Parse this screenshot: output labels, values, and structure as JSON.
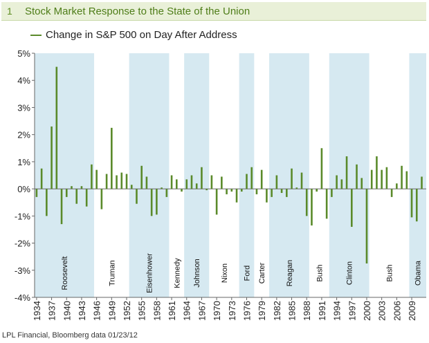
{
  "title": {
    "number": "1",
    "text": "Stock Market Response to the State of the Union"
  },
  "legend_label": "Change in S&P 500 on Day After Address",
  "source": "LPL Financial, Bloomberg data   01/23/12",
  "colors": {
    "bar": "#5a8a2a",
    "band": "#d6e9f1",
    "axis": "#666666",
    "title_bg": "#e9f0d8"
  },
  "chart_data": {
    "type": "bar",
    "ylim": [
      -4,
      5
    ],
    "yticks": [
      5,
      4,
      3,
      2,
      1,
      0,
      -1,
      -2,
      -3,
      -4
    ],
    "ytick_labels": [
      "5%",
      "4%",
      "3%",
      "2%",
      "1%",
      "0%",
      "-1%",
      "-2%",
      "-3%",
      "-4%"
    ],
    "xlim": [
      1933.6,
      2011.9
    ],
    "xticks": [
      1934,
      1937,
      1940,
      1943,
      1946,
      1949,
      1952,
      1955,
      1958,
      1961,
      1964,
      1967,
      1970,
      1973,
      1976,
      1979,
      1982,
      1985,
      1988,
      1991,
      1994,
      1997,
      2000,
      2003,
      2006,
      2009
    ],
    "grid": false,
    "legend_position": "top-left",
    "values_pct": [
      [
        1934,
        -0.3
      ],
      [
        1935,
        0.75
      ],
      [
        1936,
        -1.0
      ],
      [
        1937,
        2.3
      ],
      [
        1938,
        4.5
      ],
      [
        1939,
        -1.3
      ],
      [
        1940,
        -0.3
      ],
      [
        1941,
        0.1
      ],
      [
        1942,
        -0.55
      ],
      [
        1943,
        0.1
      ],
      [
        1944,
        -0.65
      ],
      [
        1945,
        0.9
      ],
      [
        1946,
        0.7
      ],
      [
        1947,
        -0.75
      ],
      [
        1948,
        0.55
      ],
      [
        1949,
        2.25
      ],
      [
        1950,
        0.5
      ],
      [
        1951,
        0.6
      ],
      [
        1952,
        0.55
      ],
      [
        1953,
        0.15
      ],
      [
        1954,
        -0.55
      ],
      [
        1955,
        0.85
      ],
      [
        1956,
        0.45
      ],
      [
        1957,
        -1.0
      ],
      [
        1958,
        -0.95
      ],
      [
        1959,
        0.05
      ],
      [
        1960,
        -0.3
      ],
      [
        1961,
        0.5
      ],
      [
        1962,
        0.35
      ],
      [
        1963,
        -0.1
      ],
      [
        1964,
        0.35
      ],
      [
        1965,
        0.5
      ],
      [
        1966,
        0.2
      ],
      [
        1967,
        0.8
      ],
      [
        1968,
        -0.05
      ],
      [
        1969,
        0.5
      ],
      [
        1970,
        -0.95
      ],
      [
        1971,
        0.45
      ],
      [
        1972,
        -0.2
      ],
      [
        1973,
        -0.1
      ],
      [
        1974,
        -0.5
      ],
      [
        1975,
        -0.1
      ],
      [
        1976,
        0.55
      ],
      [
        1977,
        0.8
      ],
      [
        1978,
        -0.2
      ],
      [
        1979,
        0.7
      ],
      [
        1980,
        -0.5
      ],
      [
        1981,
        -0.3
      ],
      [
        1982,
        0.5
      ],
      [
        1983,
        -0.15
      ],
      [
        1984,
        -0.3
      ],
      [
        1985,
        0.75
      ],
      [
        1986,
        0.05
      ],
      [
        1987,
        0.6
      ],
      [
        1988,
        -1.0
      ],
      [
        1989,
        -1.35
      ],
      [
        1990,
        -0.1
      ],
      [
        1991,
        1.5
      ],
      [
        1992,
        -1.1
      ],
      [
        1993,
        -0.3
      ],
      [
        1994,
        0.5
      ],
      [
        1995,
        0.35
      ],
      [
        1996,
        1.2
      ],
      [
        1997,
        -1.4
      ],
      [
        1998,
        0.9
      ],
      [
        1999,
        0.4
      ],
      [
        2000,
        -2.75
      ],
      [
        2001,
        0.7
      ],
      [
        2002,
        1.2
      ],
      [
        2003,
        0.7
      ],
      [
        2004,
        0.8
      ],
      [
        2005,
        -0.3
      ],
      [
        2006,
        0.2
      ],
      [
        2007,
        0.85
      ],
      [
        2008,
        0.65
      ],
      [
        2009,
        -1.05
      ],
      [
        2010,
        -1.2
      ],
      [
        2011,
        0.45
      ]
    ],
    "administrations": [
      {
        "name": "Roosevelt",
        "start": 1933.6,
        "end": 1945.5,
        "shaded": true
      },
      {
        "name": "Truman",
        "start": 1945.5,
        "end": 1952.5,
        "shaded": false
      },
      {
        "name": "Eisenhower",
        "start": 1952.5,
        "end": 1960.5,
        "shaded": true
      },
      {
        "name": "Kennedy",
        "start": 1960.5,
        "end": 1963.5,
        "shaded": false
      },
      {
        "name": "Johnson",
        "start": 1963.5,
        "end": 1968.5,
        "shaded": true
      },
      {
        "name": "Nixon",
        "start": 1968.5,
        "end": 1974.5,
        "shaded": false
      },
      {
        "name": "Ford",
        "start": 1974.5,
        "end": 1977.5,
        "shaded": true
      },
      {
        "name": "Carter",
        "start": 1977.5,
        "end": 1980.5,
        "shaded": false
      },
      {
        "name": "Reagan",
        "start": 1980.5,
        "end": 1988.5,
        "shaded": true
      },
      {
        "name": "Bush",
        "start": 1988.5,
        "end": 1992.5,
        "shaded": false
      },
      {
        "name": "Clinton",
        "start": 1992.5,
        "end": 2000.5,
        "shaded": true
      },
      {
        "name": "Bush",
        "start": 2000.5,
        "end": 2008.5,
        "shaded": false
      },
      {
        "name": "Obama",
        "start": 2008.5,
        "end": 2011.9,
        "shaded": true
      }
    ]
  }
}
